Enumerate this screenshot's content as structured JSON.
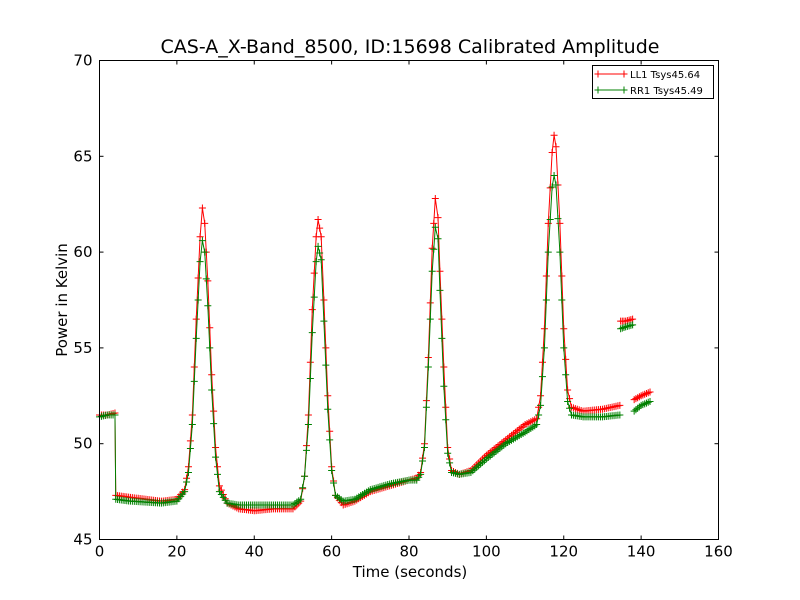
{
  "chart_data": {
    "type": "line",
    "title": "CAS-A_X-Band_8500, ID:15698 Calibrated Amplitude",
    "xlabel": "Time (seconds)",
    "ylabel": "Power in Kelvin",
    "xlim": [
      0,
      160
    ],
    "ylim": [
      45,
      70
    ],
    "x_ticks": [
      "0",
      "20",
      "40",
      "60",
      "80",
      "100",
      "120",
      "140",
      "160"
    ],
    "y_ticks": [
      "45",
      "50",
      "55",
      "60",
      "65",
      "70"
    ],
    "grid": false,
    "legend_position": "top-right",
    "series": [
      {
        "name": "LL1 Tsys45.64",
        "color": "#ff0000",
        "marker": "plus",
        "segments": [
          [
            [
              0,
              51.5
            ],
            [
              2,
              51.5
            ],
            [
              4,
              51.6
            ],
            [
              4.2,
              47.3
            ],
            [
              8,
              47.2
            ],
            [
              12,
              47.1
            ],
            [
              16,
              47.0
            ],
            [
              20,
              47.1
            ],
            [
              22,
              47.6
            ],
            [
              23,
              48.8
            ],
            [
              24,
              51.5
            ],
            [
              25,
              56.5
            ],
            [
              26,
              60.8
            ],
            [
              26.6,
              62.3
            ],
            [
              27.2,
              61.5
            ],
            [
              28,
              58.5
            ],
            [
              29,
              53.6
            ],
            [
              30,
              49.8
            ],
            [
              31,
              47.8
            ],
            [
              33,
              46.9
            ],
            [
              36,
              46.6
            ],
            [
              40,
              46.5
            ],
            [
              45,
              46.6
            ],
            [
              50,
              46.6
            ],
            [
              52,
              47.0
            ],
            [
              53,
              48.3
            ],
            [
              54,
              51.5
            ],
            [
              55,
              57.0
            ],
            [
              56,
              60.8
            ],
            [
              56.5,
              61.7
            ],
            [
              57.3,
              60.8
            ],
            [
              58,
              57.5
            ],
            [
              59,
              52.5
            ],
            [
              60,
              48.8
            ],
            [
              61,
              47.3
            ],
            [
              63,
              46.8
            ],
            [
              66,
              47.0
            ],
            [
              70,
              47.5
            ],
            [
              75,
              47.8
            ],
            [
              80,
              48.1
            ],
            [
              82,
              48.2
            ],
            [
              83,
              48.5
            ],
            [
              84,
              50.0
            ],
            [
              85,
              54.5
            ],
            [
              86,
              60.2
            ],
            [
              86.8,
              62.8
            ],
            [
              87.5,
              61.8
            ],
            [
              88,
              59.0
            ],
            [
              89,
              54.0
            ],
            [
              90,
              49.8
            ],
            [
              91,
              48.6
            ],
            [
              93,
              48.4
            ],
            [
              96,
              48.6
            ],
            [
              100,
              49.4
            ],
            [
              105,
              50.2
            ],
            [
              110,
              51.0
            ],
            [
              113,
              51.3
            ],
            [
              114,
              52.5
            ],
            [
              115,
              56.0
            ],
            [
              116,
              61.5
            ],
            [
              117,
              65.2
            ],
            [
              117.5,
              66.1
            ],
            [
              118,
              65.5
            ],
            [
              119,
              61.5
            ],
            [
              120,
              56.0
            ],
            [
              121,
              52.8
            ],
            [
              122,
              51.9
            ],
            [
              125,
              51.7
            ],
            [
              130,
              51.8
            ],
            [
              134.5,
              52.0
            ]
          ],
          [
            [
              134.7,
              56.4
            ],
            [
              136,
              56.4
            ],
            [
              137.8,
              56.5
            ]
          ],
          [
            [
              138.2,
              52.3
            ],
            [
              140,
              52.5
            ],
            [
              142.3,
              52.7
            ]
          ]
        ]
      },
      {
        "name": "RR1 Tsys45.49",
        "color": "#008000",
        "marker": "plus",
        "segments": [
          [
            [
              0,
              51.4
            ],
            [
              2,
              51.5
            ],
            [
              4,
              51.5
            ],
            [
              4.2,
              47.1
            ],
            [
              8,
              47.0
            ],
            [
              12,
              46.95
            ],
            [
              16,
              46.9
            ],
            [
              20,
              47.0
            ],
            [
              22,
              47.5
            ],
            [
              23,
              48.5
            ],
            [
              24,
              51.0
            ],
            [
              25,
              55.5
            ],
            [
              26,
              59.5
            ],
            [
              26.6,
              60.6
            ],
            [
              27.2,
              60.0
            ],
            [
              28,
              57.2
            ],
            [
              29,
              52.8
            ],
            [
              30,
              49.3
            ],
            [
              31,
              47.5
            ],
            [
              33,
              46.9
            ],
            [
              36,
              46.8
            ],
            [
              40,
              46.8
            ],
            [
              45,
              46.8
            ],
            [
              50,
              46.8
            ],
            [
              52,
              47.1
            ],
            [
              53,
              48.3
            ],
            [
              54,
              51.0
            ],
            [
              55,
              55.8
            ],
            [
              56,
              59.5
            ],
            [
              56.5,
              60.3
            ],
            [
              57.3,
              59.6
            ],
            [
              58,
              56.4
            ],
            [
              59,
              51.8
            ],
            [
              60,
              48.6
            ],
            [
              61,
              47.3
            ],
            [
              63,
              47.0
            ],
            [
              66,
              47.1
            ],
            [
              70,
              47.6
            ],
            [
              75,
              47.9
            ],
            [
              80,
              48.1
            ],
            [
              82,
              48.1
            ],
            [
              83,
              48.4
            ],
            [
              84,
              49.8
            ],
            [
              85,
              54.0
            ],
            [
              86,
              59.0
            ],
            [
              86.8,
              61.3
            ],
            [
              87.5,
              60.7
            ],
            [
              88,
              58.0
            ],
            [
              89,
              53.0
            ],
            [
              90,
              49.5
            ],
            [
              91,
              48.5
            ],
            [
              93,
              48.4
            ],
            [
              96,
              48.5
            ],
            [
              100,
              49.2
            ],
            [
              105,
              50.0
            ],
            [
              110,
              50.6
            ],
            [
              113,
              51.0
            ],
            [
              114,
              52.0
            ],
            [
              115,
              55.0
            ],
            [
              116,
              60.0
            ],
            [
              117,
              63.4
            ],
            [
              117.5,
              64.0
            ],
            [
              118,
              63.5
            ],
            [
              119,
              60.0
            ],
            [
              120,
              55.0
            ],
            [
              121,
              52.2
            ],
            [
              122,
              51.5
            ],
            [
              125,
              51.4
            ],
            [
              130,
              51.4
            ],
            [
              134.5,
              51.5
            ]
          ],
          [
            [
              134.7,
              56.0
            ],
            [
              136,
              56.1
            ],
            [
              137.8,
              56.2
            ]
          ],
          [
            [
              138.2,
              51.7
            ],
            [
              140,
              52.0
            ],
            [
              142.3,
              52.2
            ]
          ]
        ]
      }
    ]
  }
}
